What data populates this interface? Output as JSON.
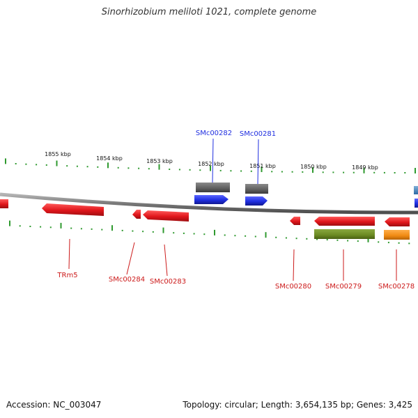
{
  "header": {
    "title": "Sinorhizobium meliloti 1021, complete genome"
  },
  "footer": {
    "accession": "Accession: NC_003047",
    "summary": "Topology: circular; Length: 3,654,135 bp; Genes: 3,425"
  },
  "scale_labels": [
    "1855 kbp",
    "1854 kbp",
    "1853 kbp",
    "1852 kbp",
    "1851 kbp",
    "1850 kbp",
    "1849 kbp"
  ],
  "forward_genes": [
    {
      "label": "SMc00282",
      "color": "#1f2ee0",
      "track_color": "#6a6a6a"
    },
    {
      "label": "SMc00281",
      "color": "#1f2ee0",
      "track_color": "#6a6a6a"
    }
  ],
  "reverse_genes": [
    {
      "label": "TRm5",
      "color": "#e0161b"
    },
    {
      "label": "SMc00284",
      "color": "#e0161b"
    },
    {
      "label": "SMc00283",
      "color": "#e0161b"
    },
    {
      "label": "SMc00280",
      "color": "#e0161b"
    },
    {
      "label": "SMc00279",
      "color": "#e0161b",
      "track_color": "#6b8a22"
    },
    {
      "label": "SMc00278",
      "color": "#e0161b",
      "track_color": "#f08a12"
    }
  ],
  "colors": {
    "backbone": "#7a7a7a",
    "tick": "#2f9a2f",
    "forward_label": "#1f2ee0",
    "reverse_label": "#cc1a1a"
  }
}
